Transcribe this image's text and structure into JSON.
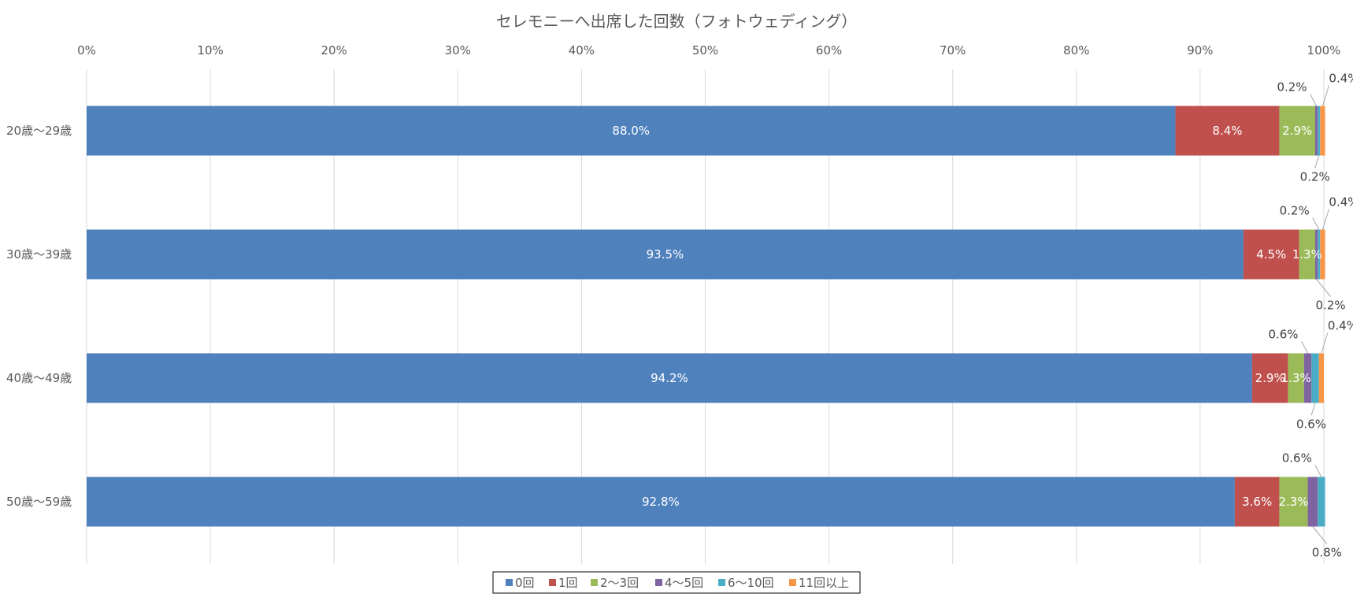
{
  "chart_data": {
    "type": "bar",
    "orientation": "horizontal",
    "stacked": "percent",
    "title": "セレモニーへ出席した回数（フォトウェディング）",
    "xlim": [
      0,
      100
    ],
    "x_ticks": [
      "0%",
      "10%",
      "20%",
      "30%",
      "40%",
      "50%",
      "60%",
      "70%",
      "80%",
      "90%",
      "100%"
    ],
    "categories": [
      "20歳～29歳",
      "30歳～39歳",
      "40歳～49歳",
      "50歳～59歳"
    ],
    "grid": true,
    "legend_position": "bottom",
    "series": [
      {
        "name": "0回",
        "color": "#4F81BD",
        "values": [
          88.0,
          93.5,
          94.2,
          92.8
        ],
        "labels": [
          "88.0%",
          "93.5%",
          "94.2%",
          "92.8%"
        ]
      },
      {
        "name": "1回",
        "color": "#C0504D",
        "values": [
          8.4,
          4.5,
          2.9,
          3.6
        ],
        "labels": [
          "8.4%",
          "4.5%",
          "2.9%",
          "3.6%"
        ]
      },
      {
        "name": "2～3回",
        "color": "#9BBB59",
        "values": [
          2.9,
          1.3,
          1.3,
          2.3
        ],
        "labels": [
          "2.9%",
          "1.3%",
          "1.3%",
          "2.3%"
        ]
      },
      {
        "name": "4～5回",
        "color": "#8064A2",
        "values": [
          0.2,
          0.2,
          0.6,
          0.8
        ],
        "labels": [
          "0.2%",
          "0.2%",
          "0.6%",
          "0.8%"
        ]
      },
      {
        "name": "6～10回",
        "color": "#4BACC6",
        "values": [
          0.2,
          0.2,
          0.6,
          0.6
        ],
        "labels": [
          "0.2%",
          "0.2%",
          "0.6%",
          "0.6%"
        ]
      },
      {
        "name": "11回以上",
        "color": "#F79646",
        "values": [
          0.4,
          0.4,
          0.4,
          0.0
        ],
        "labels": [
          "0.4%",
          "0.4%",
          "0.4%",
          ""
        ]
      }
    ]
  }
}
